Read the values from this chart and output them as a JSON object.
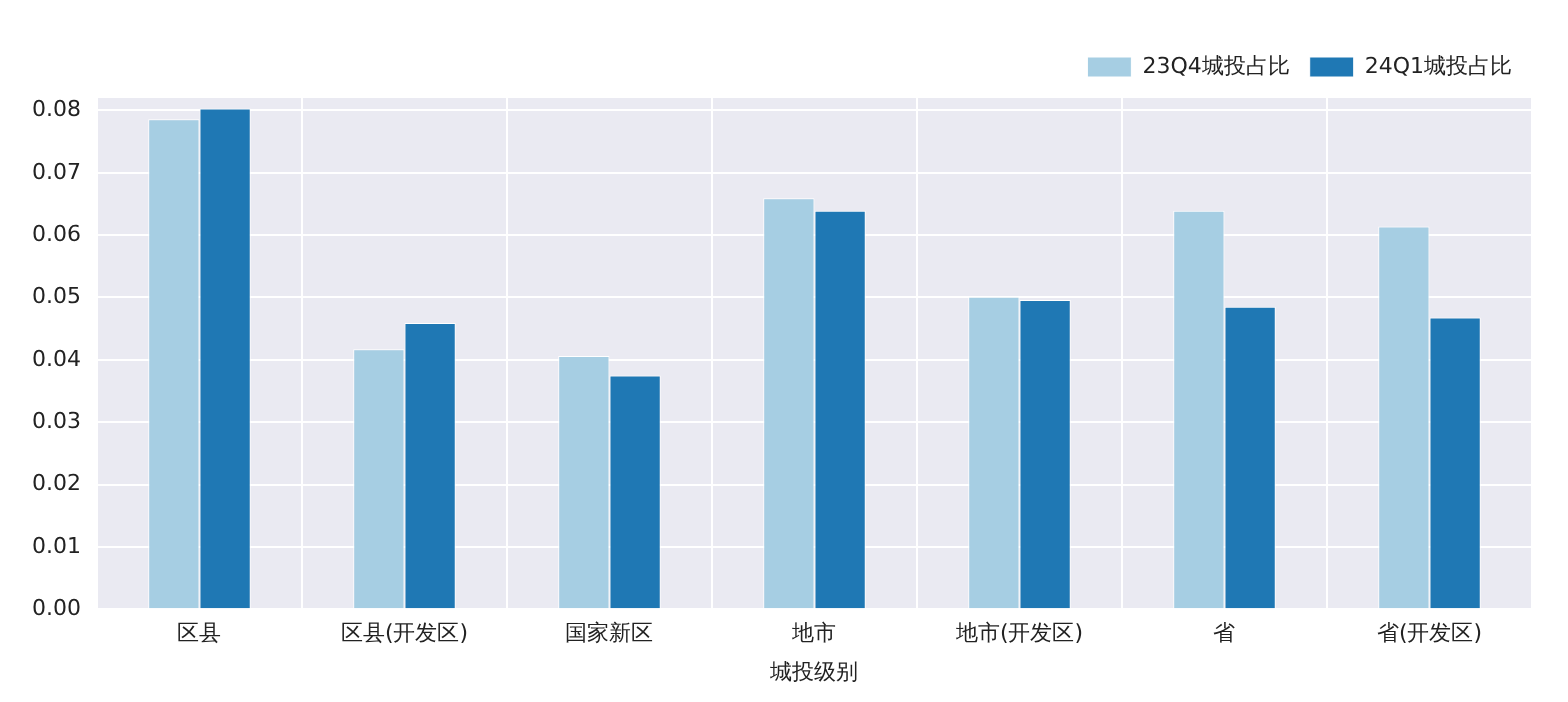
{
  "chart_data": {
    "type": "bar",
    "xlabel": "城投级别",
    "categories": [
      "区县",
      "区县(开发区)",
      "国家新区",
      "地市",
      "地市(开发区)",
      "省",
      "省(开发区)"
    ],
    "series": [
      {
        "name": "23Q4城投占比",
        "color": "#a6cee3",
        "values": [
          0.0786,
          0.0417,
          0.0406,
          0.0659,
          0.0501,
          0.0639,
          0.0614
        ]
      },
      {
        "name": "24Q1城投占比",
        "color": "#1f78b4",
        "values": [
          0.0803,
          0.0459,
          0.0375,
          0.0639,
          0.0496,
          0.0485,
          0.0468
        ]
      }
    ],
    "ylim": [
      0,
      0.082
    ],
    "yticks": [
      {
        "value": 0,
        "label": "0.00"
      },
      {
        "value": 0.01,
        "label": "0.01"
      },
      {
        "value": 0.02,
        "label": "0.02"
      },
      {
        "value": 0.03,
        "label": "0.03"
      },
      {
        "value": 0.04,
        "label": "0.04"
      },
      {
        "value": 0.05,
        "label": "0.05"
      },
      {
        "value": 0.06,
        "label": "0.06"
      },
      {
        "value": 0.07,
        "label": "0.07"
      },
      {
        "value": 0.08,
        "label": "0.08"
      }
    ],
    "grid": true,
    "legend": "top right"
  }
}
